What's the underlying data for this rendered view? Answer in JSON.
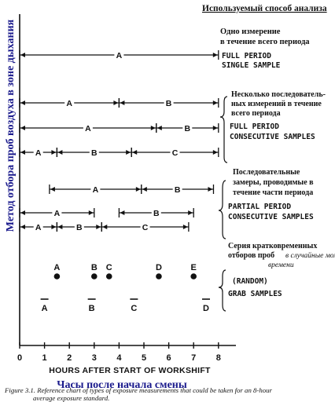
{
  "header": {
    "title": "Используемый способ анализа"
  },
  "axis": {
    "ylabel": "Метод отбора проб воздуха в зоне дыхания",
    "xlabel_en": "HOURS AFTER START OF WORKSHIFT",
    "xlabel_ru": "Часы после начала смены",
    "ticks": [
      "0",
      "1",
      "2",
      "3",
      "4",
      "5",
      "6",
      "7",
      "8"
    ]
  },
  "groups": [
    {
      "ru": [
        "Одно измерение",
        "в течение всего периода"
      ],
      "en": [
        "FULL PERIOD",
        "SINGLE SAMPLE"
      ]
    },
    {
      "ru": [
        "Несколько последователь-",
        "ных измерений в течение",
        "всего периода"
      ],
      "en": [
        "FULL PERIOD",
        "CONSECUTIVE SAMPLES"
      ]
    },
    {
      "ru": [
        "Последовательные",
        "замеры, проводимые в",
        "течение части периода"
      ],
      "en": [
        "PARTIAL PERIOD",
        "CONSECUTIVE SAMPLES"
      ]
    },
    {
      "ru": [
        "Серия кратковременных",
        "отборов проб",
        "в случайные моменты",
        "времени"
      ],
      "en": [
        "(RANDOM)",
        "GRAB SAMPLES"
      ]
    }
  ],
  "intervals": [
    {
      "y": 70,
      "segs": [
        {
          "from": 0,
          "to": 8,
          "label": "A"
        }
      ]
    },
    {
      "y": 131,
      "segs": [
        {
          "from": 0,
          "to": 4,
          "label": "A"
        },
        {
          "from": 4,
          "to": 8,
          "label": "B"
        }
      ]
    },
    {
      "y": 163,
      "segs": [
        {
          "from": 0,
          "to": 5.5,
          "label": "A"
        },
        {
          "from": 5.5,
          "to": 8,
          "label": "B"
        }
      ]
    },
    {
      "y": 194,
      "segs": [
        {
          "from": 0,
          "to": 1.5,
          "label": "A"
        },
        {
          "from": 1.5,
          "to": 4.5,
          "label": "B"
        },
        {
          "from": 4.5,
          "to": 8,
          "label": "C"
        }
      ]
    },
    {
      "y": 241,
      "segs": [
        {
          "from": 1.2,
          "to": 4.9,
          "label": "A"
        },
        {
          "from": 4.9,
          "to": 7.8,
          "label": "B"
        }
      ]
    },
    {
      "y": 271,
      "segs": [
        {
          "from": 0,
          "to": 3,
          "label": "A"
        },
        {
          "from": 4,
          "to": 7,
          "label": "B"
        }
      ]
    },
    {
      "y": 289,
      "segs": [
        {
          "from": 0,
          "to": 1.5,
          "label": "A"
        },
        {
          "from": 1.5,
          "to": 3.3,
          "label": "B"
        },
        {
          "from": 3.3,
          "to": 6.8,
          "label": "C"
        }
      ]
    }
  ],
  "grab_points": [
    {
      "x": 1.5,
      "label": "A"
    },
    {
      "x": 3.0,
      "label": "B"
    },
    {
      "x": 3.6,
      "label": "C"
    },
    {
      "x": 5.6,
      "label": "D"
    },
    {
      "x": 7.0,
      "label": "E"
    }
  ],
  "grab_bars": [
    {
      "x": 1.0,
      "label": "A"
    },
    {
      "x": 2.9,
      "label": "B"
    },
    {
      "x": 4.6,
      "label": "C"
    },
    {
      "x": 7.5,
      "label": "D"
    }
  ],
  "caption": [
    "Figure 3.1. Reference chart of types of exposure measurements that could be taken for an 8-hour",
    "average exposure standard."
  ],
  "colors": {
    "ink": "#111111",
    "blue": "#1a1a8c"
  }
}
